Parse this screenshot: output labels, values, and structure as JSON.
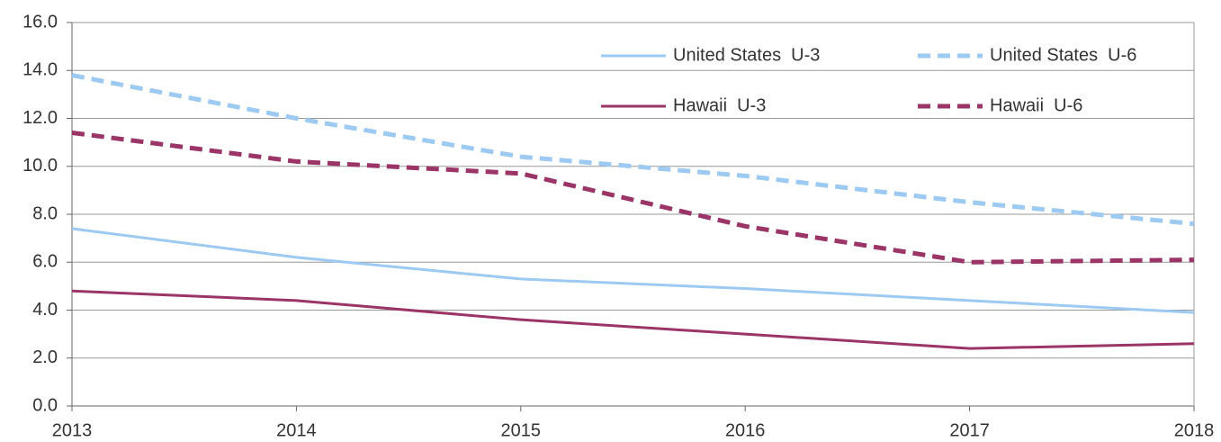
{
  "chart_data": {
    "type": "line",
    "x": [
      2013,
      2014,
      2015,
      2016,
      2017,
      2018
    ],
    "series": [
      {
        "name": "United States  U-3",
        "color": "#9ccaf2",
        "style": "solid",
        "values": [
          7.4,
          6.2,
          5.3,
          4.9,
          4.4,
          3.9
        ]
      },
      {
        "name": "United States  U-6",
        "color": "#9ccaf2",
        "style": "dashed",
        "values": [
          13.8,
          12.0,
          10.4,
          9.6,
          8.5,
          7.6
        ]
      },
      {
        "name": "Hawaii  U-3",
        "color": "#9b3467",
        "style": "solid",
        "values": [
          4.8,
          4.4,
          3.6,
          3.0,
          2.4,
          2.6
        ]
      },
      {
        "name": "Hawaii  U-6",
        "color": "#9b3467",
        "style": "dashed",
        "values": [
          11.4,
          10.2,
          9.7,
          7.5,
          6.0,
          6.1
        ]
      }
    ],
    "xlim": [
      2013,
      2018
    ],
    "xticks": [
      2013,
      2014,
      2015,
      2016,
      2017,
      2018
    ],
    "ylim": [
      0,
      16
    ],
    "yticks": [
      {
        "value": 0,
        "label": "0.0"
      },
      {
        "value": 2,
        "label": "2.0"
      },
      {
        "value": 4,
        "label": "4.0"
      },
      {
        "value": 6,
        "label": "6.0"
      },
      {
        "value": 8,
        "label": "8.0"
      },
      {
        "value": 10,
        "label": "10.0"
      },
      {
        "value": 12,
        "label": "12.0"
      },
      {
        "value": 14,
        "label": "14.0"
      },
      {
        "value": 16,
        "label": "16.0"
      }
    ],
    "grid": true,
    "legend": "top-right"
  }
}
